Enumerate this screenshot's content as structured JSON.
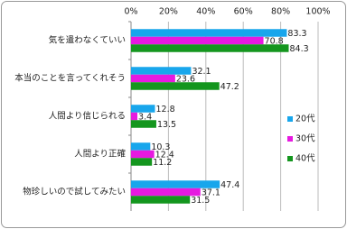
{
  "chart_data": {
    "type": "bar",
    "orientation": "horizontal",
    "categories": [
      "気を遣わなくていい",
      "本当のことを言ってくれそう",
      "人間より信じられる",
      "人間より正確",
      "物珍しいので試してみたい"
    ],
    "series": [
      {
        "name": "20代",
        "color": "#18a6ec",
        "values": [
          83.3,
          32.1,
          12.8,
          10.3,
          47.4
        ]
      },
      {
        "name": "30代",
        "color": "#e619e0",
        "values": [
          70.8,
          23.6,
          3.4,
          12.4,
          37.1
        ]
      },
      {
        "name": "40代",
        "color": "#14961e",
        "values": [
          84.3,
          47.2,
          13.5,
          11.2,
          31.5
        ]
      }
    ],
    "xlim": [
      0,
      100
    ],
    "xticks": [
      {
        "value": 0,
        "label": "0%"
      },
      {
        "value": 20,
        "label": "20%"
      },
      {
        "value": 40,
        "label": "40%"
      },
      {
        "value": 60,
        "label": "60%"
      },
      {
        "value": 80,
        "label": "80%"
      },
      {
        "value": 100,
        "label": "100%"
      }
    ],
    "grid": true,
    "legend": "right"
  }
}
